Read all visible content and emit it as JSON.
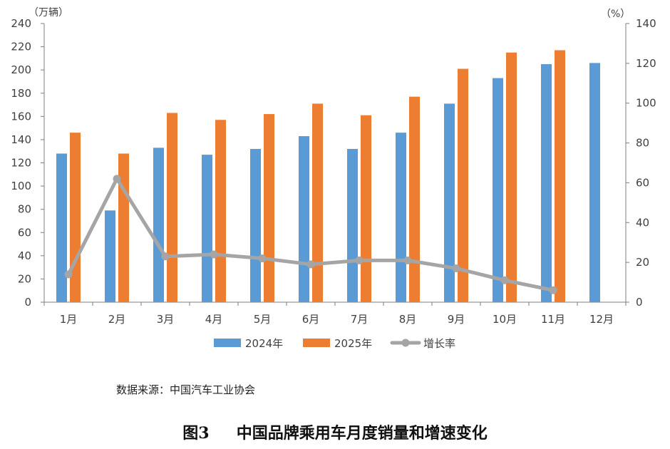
{
  "chart_data": {
    "type": "bar",
    "categories": [
      "1月",
      "2月",
      "3月",
      "4月",
      "5月",
      "6月",
      "7月",
      "8月",
      "9月",
      "10月",
      "11月",
      "12月"
    ],
    "series": [
      {
        "name": "2024年",
        "type": "bar",
        "axis": "left",
        "color": "#5B9BD5",
        "values": [
          128,
          79,
          133,
          127,
          132,
          143,
          132,
          146,
          171,
          193,
          205,
          206
        ]
      },
      {
        "name": "2025年",
        "type": "bar",
        "axis": "left",
        "color": "#ED7D31",
        "values": [
          146,
          128,
          163,
          157,
          162,
          171,
          161,
          177,
          201,
          215,
          217,
          null
        ]
      },
      {
        "name": "增长率",
        "type": "line",
        "axis": "right",
        "color": "#A5A5A5",
        "values": [
          14,
          62,
          23,
          24,
          22,
          19,
          21,
          21,
          17,
          11,
          6,
          null
        ]
      }
    ],
    "y_left": {
      "unit": "（万辆）",
      "lim": [
        0,
        240
      ],
      "ticks": [
        0,
        20,
        40,
        60,
        80,
        100,
        120,
        140,
        160,
        180,
        200,
        220,
        240
      ]
    },
    "y_right": {
      "unit": "（%）",
      "lim": [
        0,
        140
      ],
      "ticks": [
        0,
        20,
        40,
        60,
        80,
        100,
        120,
        140
      ]
    },
    "grid": false,
    "legend": "bottom"
  },
  "source": "数据来源：中国汽车工业协会",
  "figure_label": "图3",
  "title": "中国品牌乘用车月度销量和增速变化"
}
